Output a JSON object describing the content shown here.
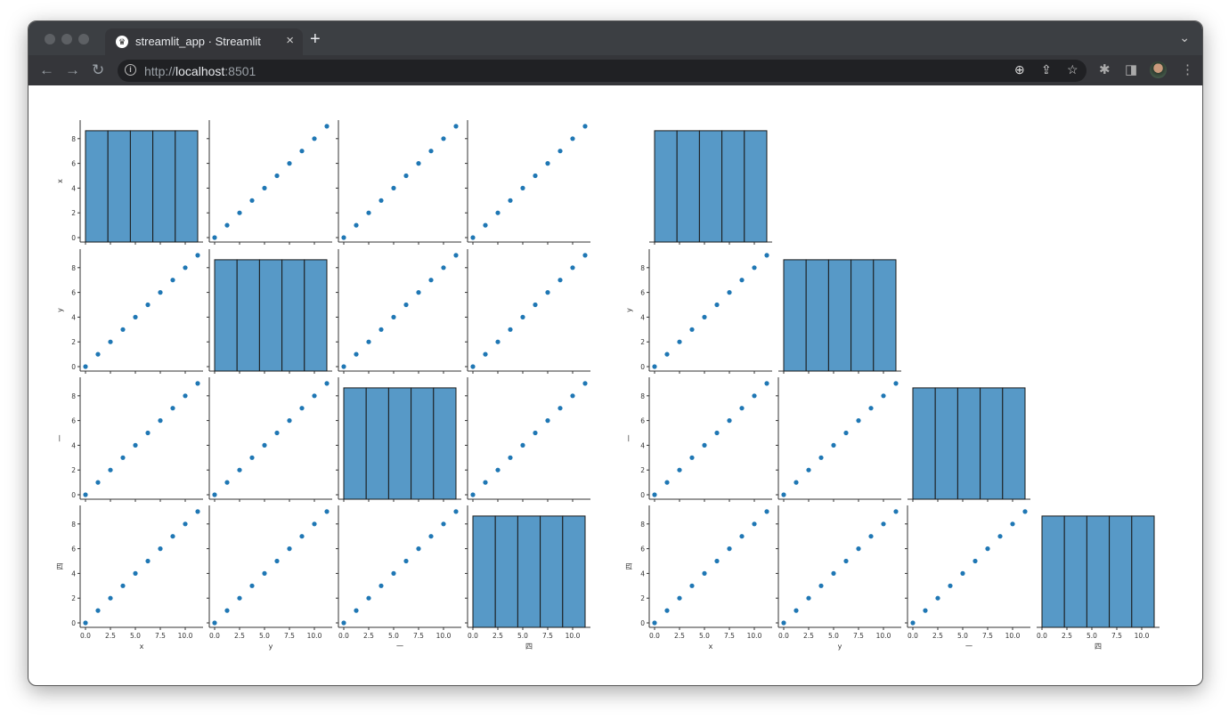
{
  "browser": {
    "tab_title": "streamlit_app · Streamlit",
    "favicon": "streamlit-crown-icon",
    "url_prefix": "http://",
    "url_host": "localhost",
    "url_suffix": ":8501",
    "new_tab_label": "+",
    "close_tab_label": "×"
  },
  "chart_data": [
    {
      "type": "scatter",
      "layout": "pairplot",
      "corner": false,
      "variables": [
        "x",
        "y",
        "一",
        "四"
      ],
      "x_values": [
        0,
        1.25,
        2.5,
        3.75,
        5,
        6.25,
        7.5,
        8.75,
        10,
        11.25
      ],
      "y_values": [
        0,
        1,
        2,
        3,
        4,
        5,
        6,
        7,
        8,
        9
      ],
      "diag": {
        "type": "bar",
        "bin_edges": [
          0,
          2.25,
          4.5,
          6.75,
          9,
          11.25
        ],
        "counts": [
          2,
          2,
          2,
          2,
          2
        ]
      },
      "xticks": [
        "0.0",
        "2.5",
        "5.0",
        "7.5",
        "10.0"
      ],
      "yticks": [
        "0",
        "2",
        "4",
        "6",
        "8"
      ],
      "color": "#1f77b4",
      "hist_color": "#5799c7",
      "grid": false
    },
    {
      "type": "scatter",
      "layout": "pairplot",
      "corner": true,
      "variables": [
        "x",
        "y",
        "一",
        "四"
      ],
      "x_values": [
        0,
        1.25,
        2.5,
        3.75,
        5,
        6.25,
        7.5,
        8.75,
        10,
        11.25
      ],
      "y_values": [
        0,
        1,
        2,
        3,
        4,
        5,
        6,
        7,
        8,
        9
      ],
      "diag": {
        "type": "bar",
        "bin_edges": [
          0,
          2.25,
          4.5,
          6.75,
          9,
          11.25
        ],
        "counts": [
          2,
          2,
          2,
          2,
          2
        ]
      },
      "xticks": [
        "0.0",
        "2.5",
        "5.0",
        "7.5",
        "10.0"
      ],
      "yticks": [
        "0",
        "2",
        "4",
        "6",
        "8"
      ],
      "color": "#1f77b4",
      "hist_color": "#5799c7",
      "grid": false
    }
  ]
}
